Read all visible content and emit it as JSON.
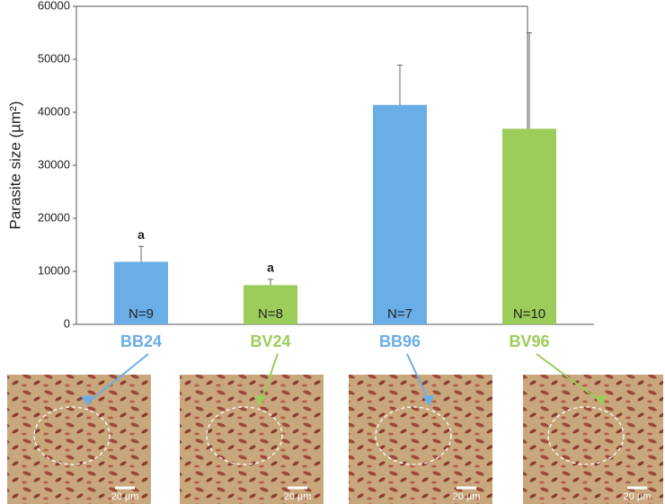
{
  "chart_data": {
    "type": "bar",
    "y_label": "Parasite size (µm²)",
    "categories": [
      "BB24",
      "BV24",
      "BB96",
      "BV96"
    ],
    "values": [
      11800,
      7400,
      41400,
      36900
    ],
    "errors": [
      2900,
      1100,
      7500,
      18100
    ],
    "colors": [
      "#6aaee8",
      "#9ccc5a",
      "#6aaee8",
      "#9ccc5a"
    ],
    "sig_letters": [
      "a",
      "a",
      null,
      null
    ],
    "n_labels": [
      "N=9",
      "N=8",
      "N=7",
      "N=10"
    ],
    "ylim": [
      0,
      60000
    ],
    "yticks": [
      0,
      10000,
      20000,
      30000,
      40000,
      50000,
      60000
    ],
    "grid": false,
    "scale_bar_labels": [
      "20 µm",
      "20 µm",
      "20 µm",
      "20 µm"
    ]
  }
}
